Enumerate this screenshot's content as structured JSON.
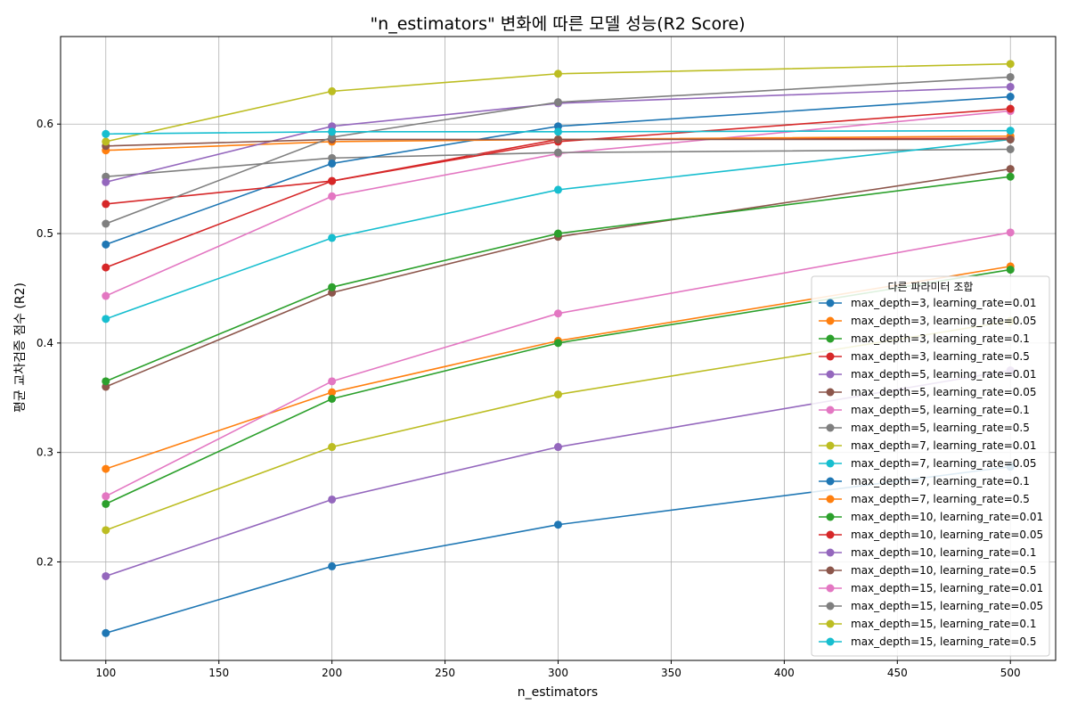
{
  "chart_data": {
    "type": "line",
    "title": "\"n_estimators\" 변화에 따른 모델 성능(R2 Score)",
    "xlabel": "n_estimators",
    "ylabel": "평균 교차검증 점수 (R2)",
    "x": [
      100,
      200,
      300,
      500
    ],
    "xlim": [
      80,
      520
    ],
    "ylim": [
      0.11,
      0.68
    ],
    "xticks": [
      100,
      150,
      200,
      250,
      300,
      350,
      400,
      450,
      500
    ],
    "yticks": [
      0.2,
      0.3,
      0.4,
      0.5,
      0.6
    ],
    "xtick_labels": [
      "100",
      "150",
      "200",
      "250",
      "300",
      "350",
      "400",
      "450",
      "500"
    ],
    "ytick_labels": [
      "0.2",
      "0.3",
      "0.4",
      "0.5",
      "0.6"
    ],
    "grid": true,
    "legend_title": "다른 파라미터 조합",
    "legend_position": "right",
    "series": [
      {
        "name": "max_depth=3, learning_rate=0.01",
        "color": "#1f77b4",
        "values": [
          0.135,
          0.196,
          0.234,
          0.287
        ]
      },
      {
        "name": "max_depth=3, learning_rate=0.05",
        "color": "#ff7f0e",
        "values": [
          0.285,
          0.355,
          0.402,
          0.47
        ]
      },
      {
        "name": "max_depth=3, learning_rate=0.1",
        "color": "#2ca02c",
        "values": [
          0.253,
          0.349,
          0.4,
          0.467
        ]
      },
      {
        "name": "max_depth=3, learning_rate=0.5",
        "color": "#d62728",
        "values": [
          0.469,
          0.548,
          0.586,
          0.587
        ]
      },
      {
        "name": "max_depth=5, learning_rate=0.01",
        "color": "#9467bd",
        "values": [
          0.187,
          0.257,
          0.305,
          0.375
        ]
      },
      {
        "name": "max_depth=5, learning_rate=0.05",
        "color": "#8c564b",
        "values": [
          0.36,
          0.446,
          0.497,
          0.559
        ]
      },
      {
        "name": "max_depth=5, learning_rate=0.1",
        "color": "#e377c2",
        "values": [
          0.443,
          0.534,
          0.573,
          0.612
        ]
      },
      {
        "name": "max_depth=5, learning_rate=0.5",
        "color": "#7f7f7f",
        "values": [
          0.552,
          0.569,
          0.574,
          0.577
        ]
      },
      {
        "name": "max_depth=7, learning_rate=0.01",
        "color": "#bcbd22",
        "values": [
          0.229,
          0.305,
          0.353,
          0.42
        ]
      },
      {
        "name": "max_depth=7, learning_rate=0.05",
        "color": "#17becf",
        "values": [
          0.422,
          0.496,
          0.54,
          0.586
        ]
      },
      {
        "name": "max_depth=7, learning_rate=0.1",
        "color": "#1f77b4",
        "values": [
          0.49,
          0.564,
          0.598,
          0.625
        ]
      },
      {
        "name": "max_depth=7, learning_rate=0.5",
        "color": "#ff7f0e",
        "values": [
          0.576,
          0.584,
          0.586,
          0.589
        ]
      },
      {
        "name": "max_depth=10, learning_rate=0.01",
        "color": "#2ca02c",
        "values": [
          0.365,
          0.451,
          0.5,
          0.552
        ]
      },
      {
        "name": "max_depth=10, learning_rate=0.05",
        "color": "#d62728",
        "values": [
          0.527,
          0.548,
          0.584,
          0.614
        ]
      },
      {
        "name": "max_depth=10, learning_rate=0.1",
        "color": "#9467bd",
        "values": [
          0.547,
          0.598,
          0.619,
          0.634
        ]
      },
      {
        "name": "max_depth=10, learning_rate=0.5",
        "color": "#8c564b",
        "values": [
          0.58,
          0.586,
          0.586,
          0.586
        ]
      },
      {
        "name": "max_depth=15, learning_rate=0.01",
        "color": "#e377c2",
        "values": [
          0.26,
          0.365,
          0.427,
          0.501
        ]
      },
      {
        "name": "max_depth=15, learning_rate=0.05",
        "color": "#7f7f7f",
        "values": [
          0.509,
          0.588,
          0.62,
          0.643
        ]
      },
      {
        "name": "max_depth=15, learning_rate=0.1",
        "color": "#bcbd22",
        "values": [
          0.584,
          0.63,
          0.646,
          0.655
        ]
      },
      {
        "name": "max_depth=15, learning_rate=0.5",
        "color": "#17becf",
        "values": [
          0.591,
          0.593,
          0.593,
          0.594
        ]
      }
    ]
  }
}
